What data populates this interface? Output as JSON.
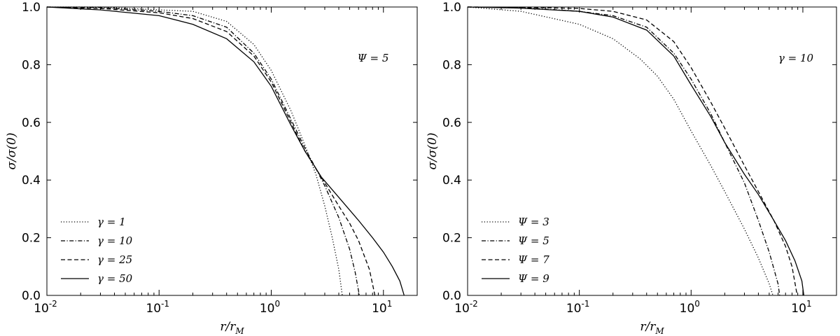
{
  "chart_data": [
    {
      "type": "line",
      "xscale": "log",
      "xlim": [
        0.01,
        20
      ],
      "ylim": [
        0,
        1.0
      ],
      "xlabel": "r/r_M",
      "ylabel": "σ/σ(0)",
      "xticks": [
        0.01,
        0.1,
        1,
        10
      ],
      "xtick_labels": [
        [
          "10",
          "-2"
        ],
        [
          "10",
          "-1"
        ],
        [
          "10",
          "0"
        ],
        [
          "10",
          "1"
        ]
      ],
      "yticks": [
        0.0,
        0.2,
        0.4,
        0.6,
        0.8,
        1.0
      ],
      "ytick_labels": [
        "0.0",
        "0.2",
        "0.4",
        "0.6",
        "0.8",
        "1.0"
      ],
      "annotation": "Ψ = 5",
      "legend_position": "lower-left",
      "series": [
        {
          "name": "γ = 1",
          "dash": "dotted",
          "x": [
            0.01,
            0.03,
            0.1,
            0.2,
            0.4,
            0.7,
            1.0,
            1.5,
            2.0,
            2.5,
            3.0,
            3.5,
            4.0,
            4.3
          ],
          "y": [
            1.0,
            1.0,
            0.99,
            0.985,
            0.95,
            0.87,
            0.78,
            0.64,
            0.52,
            0.42,
            0.31,
            0.2,
            0.09,
            0.0
          ]
        },
        {
          "name": "γ = 10",
          "dash": "dashdot",
          "x": [
            0.01,
            0.03,
            0.1,
            0.2,
            0.4,
            0.7,
            1.0,
            1.5,
            2.0,
            2.5,
            3.0,
            4.0,
            5.0,
            5.6,
            6.1
          ],
          "y": [
            1.0,
            0.998,
            0.985,
            0.97,
            0.93,
            0.84,
            0.75,
            0.61,
            0.51,
            0.44,
            0.38,
            0.27,
            0.16,
            0.08,
            0.0
          ]
        },
        {
          "name": "γ = 25",
          "dash": "dashed",
          "x": [
            0.01,
            0.03,
            0.1,
            0.2,
            0.4,
            0.7,
            1.0,
            1.5,
            2.0,
            2.5,
            3.0,
            4.0,
            5.0,
            6.0,
            7.5,
            8.4
          ],
          "y": [
            1.0,
            0.995,
            0.98,
            0.96,
            0.915,
            0.83,
            0.74,
            0.6,
            0.5,
            0.44,
            0.39,
            0.31,
            0.25,
            0.19,
            0.09,
            0.0
          ]
        },
        {
          "name": "γ = 50",
          "dash": "solid",
          "x": [
            0.01,
            0.03,
            0.1,
            0.2,
            0.4,
            0.7,
            1.0,
            1.5,
            2.0,
            2.8,
            4.0,
            6.0,
            8.0,
            10.0,
            12.0,
            14.0,
            15.3
          ],
          "y": [
            1.0,
            0.99,
            0.97,
            0.94,
            0.89,
            0.81,
            0.725,
            0.59,
            0.5,
            0.41,
            0.34,
            0.26,
            0.2,
            0.15,
            0.1,
            0.05,
            0.0
          ]
        }
      ]
    },
    {
      "type": "line",
      "xscale": "log",
      "xlim": [
        0.01,
        20
      ],
      "ylim": [
        0,
        1.0
      ],
      "xlabel": "r/r_M",
      "ylabel": "σ/σ(0)",
      "xticks": [
        0.01,
        0.1,
        1,
        10
      ],
      "xtick_labels": [
        [
          "10",
          "-2"
        ],
        [
          "10",
          "-1"
        ],
        [
          "10",
          "0"
        ],
        [
          "10",
          "1"
        ]
      ],
      "yticks": [
        0.0,
        0.2,
        0.4,
        0.6,
        0.8,
        1.0
      ],
      "ytick_labels": [
        "0.0",
        "0.2",
        "0.4",
        "0.6",
        "0.8",
        "1.0"
      ],
      "annotation": "γ = 10",
      "legend_position": "lower-left",
      "series": [
        {
          "name": "Ψ = 3",
          "dash": "dotted",
          "x": [
            0.01,
            0.03,
            0.1,
            0.2,
            0.35,
            0.5,
            0.7,
            1.0,
            1.5,
            2.0,
            3.0,
            4.0,
            5.0,
            5.4
          ],
          "y": [
            1.0,
            0.985,
            0.94,
            0.89,
            0.82,
            0.76,
            0.68,
            0.57,
            0.45,
            0.36,
            0.23,
            0.13,
            0.04,
            0.0
          ]
        },
        {
          "name": "Ψ = 5",
          "dash": "dashdot",
          "x": [
            0.01,
            0.03,
            0.1,
            0.2,
            0.4,
            0.7,
            1.0,
            1.5,
            2.0,
            3.0,
            4.0,
            5.0,
            6.0,
            6.2
          ],
          "y": [
            1.0,
            0.998,
            0.985,
            0.97,
            0.93,
            0.84,
            0.75,
            0.63,
            0.53,
            0.39,
            0.26,
            0.15,
            0.04,
            0.0
          ]
        },
        {
          "name": "Ψ = 7",
          "dash": "dashed",
          "x": [
            0.01,
            0.03,
            0.1,
            0.2,
            0.4,
            0.7,
            1.0,
            1.5,
            2.0,
            3.0,
            4.0,
            5.5,
            7.0,
            8.0,
            8.9
          ],
          "y": [
            1.0,
            0.999,
            0.995,
            0.985,
            0.955,
            0.88,
            0.79,
            0.67,
            0.58,
            0.45,
            0.36,
            0.26,
            0.17,
            0.1,
            0.0
          ]
        },
        {
          "name": "Ψ = 9",
          "dash": "solid",
          "x": [
            0.01,
            0.03,
            0.1,
            0.2,
            0.4,
            0.7,
            1.0,
            1.5,
            2.0,
            3.0,
            4.0,
            5.5,
            7.0,
            8.5,
            9.8,
            10.2
          ],
          "y": [
            1.0,
            0.996,
            0.985,
            0.965,
            0.92,
            0.83,
            0.73,
            0.62,
            0.53,
            0.42,
            0.35,
            0.26,
            0.19,
            0.12,
            0.05,
            0.0
          ]
        }
      ]
    }
  ]
}
